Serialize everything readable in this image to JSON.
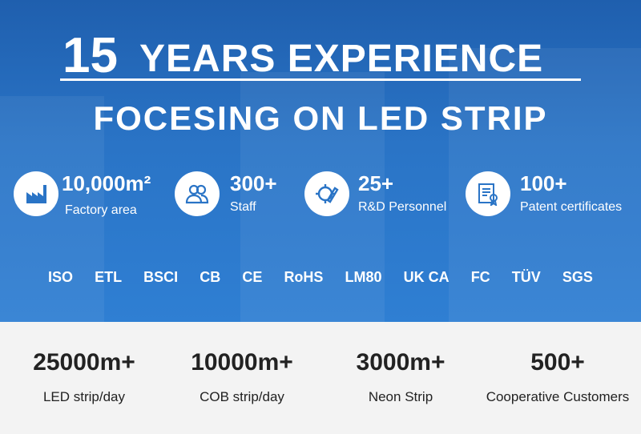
{
  "headline": {
    "number": "15",
    "text": "YEARS EXPERIENCE"
  },
  "subheadline": "FOCESING ON LED STRIP",
  "highlights": [
    {
      "value": "10,000m²",
      "label": "Factory area"
    },
    {
      "value": "300+",
      "label": "Staff"
    },
    {
      "value": "25+",
      "label": "R&D Personnel"
    },
    {
      "value": "100+",
      "label": "Patent certificates"
    }
  ],
  "certifications": [
    "ISO",
    "ETL",
    "BSCI",
    "CB",
    "CE",
    "RoHS",
    "LM80",
    "UK CA",
    "FC",
    "TÜV",
    "SGS"
  ],
  "capacity": [
    {
      "value": "25000m+",
      "label": "LED strip/day"
    },
    {
      "value": "10000m+",
      "label": "COB strip/day"
    },
    {
      "value": "3000m+",
      "label": "Neon Strip"
    },
    {
      "value": "500+",
      "label": "Cooperative Customers"
    }
  ]
}
